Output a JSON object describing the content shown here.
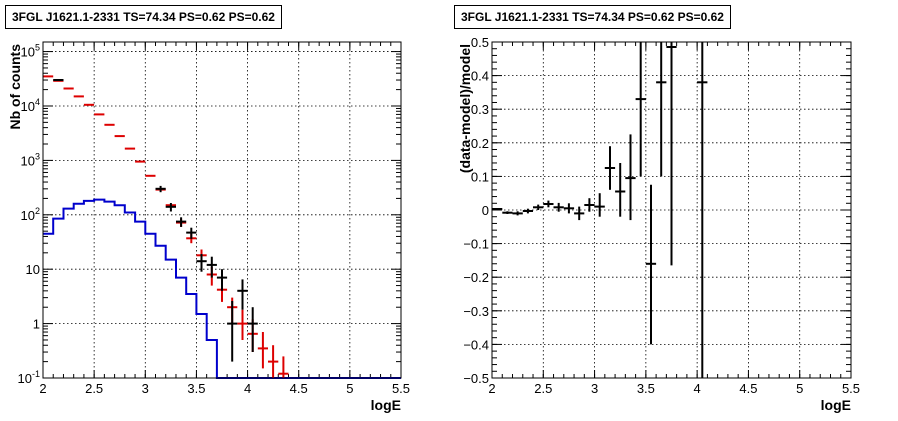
{
  "chart_data": [
    {
      "type": "histogram",
      "title": "3FGL J1621.1-2331 TS=74.34 PS=0.62 PS=0.62",
      "xlabel": "logE",
      "ylabel": "Nb of counts",
      "xlim": [
        2,
        5.5
      ],
      "ylim": [
        0.1,
        150000
      ],
      "yscale": "log",
      "grid": true,
      "x_ticks": [
        "2",
        "2.5",
        "3",
        "3.5",
        "4",
        "4.5",
        "5",
        "5.5"
      ],
      "y_ticks": [
        {
          "value": 0.1,
          "label": "10",
          "exp": "-1"
        },
        {
          "value": 1,
          "label": "1",
          "exp": ""
        },
        {
          "value": 10,
          "label": "10",
          "exp": ""
        },
        {
          "value": 100,
          "label": "10",
          "exp": "2"
        },
        {
          "value": 1000,
          "label": "10",
          "exp": "3"
        },
        {
          "value": 10000,
          "label": "10",
          "exp": "4"
        },
        {
          "value": 100000,
          "label": "10",
          "exp": "5"
        }
      ],
      "series": [
        {
          "color": "#0000cc",
          "kind": "step",
          "bin_edges": [
            2.0,
            2.1,
            2.2,
            2.3,
            2.4,
            2.5,
            2.6,
            2.7,
            2.8,
            2.9,
            3.0,
            3.1,
            3.2,
            3.3,
            3.4,
            3.5,
            3.6,
            3.7,
            3.8,
            3.9,
            4.0,
            4.1,
            4.2,
            4.3,
            4.4,
            4.5,
            4.6,
            4.7,
            4.8,
            4.9,
            5.0,
            5.1,
            5.2,
            5.3,
            5.4,
            5.5
          ],
          "values": [
            45,
            85,
            130,
            160,
            180,
            190,
            175,
            150,
            110,
            75,
            45,
            27,
            15,
            7,
            3.5,
            1.5,
            0.5,
            0.1,
            0.1,
            0.1,
            0.1,
            0.1,
            0.1,
            0.1,
            0.1,
            0.1,
            0.1,
            0.1,
            0.1,
            0.1,
            0.1,
            0.1,
            0.1,
            0.1,
            0.1
          ]
        },
        {
          "color": "#dd0000",
          "kind": "errorbar",
          "x": [
            2.05,
            2.15,
            2.25,
            2.35,
            2.45,
            2.55,
            2.65,
            2.75,
            2.85,
            2.95,
            3.05,
            3.15,
            3.25,
            3.35,
            3.45,
            3.55,
            3.65,
            3.75,
            3.85,
            3.95,
            4.05,
            4.15,
            4.25,
            4.35
          ],
          "y": [
            35000,
            29000,
            21000,
            15000,
            10500,
            7000,
            4500,
            2800,
            1650,
            950,
            520,
            290,
            150,
            72,
            37,
            18,
            8,
            4.2,
            2,
            1,
            0.65,
            0.35,
            0.2,
            0.12
          ],
          "y_low": [
            35000,
            29000,
            21000,
            15000,
            10500,
            7000,
            4500,
            2800,
            1650,
            950,
            520,
            290,
            150,
            60,
            30,
            13,
            5,
            2.5,
            1,
            0.5,
            0.3,
            0.15,
            0.1,
            0.1
          ],
          "y_high": [
            35000,
            29000,
            21000,
            15000,
            10500,
            7000,
            4500,
            2800,
            1650,
            950,
            520,
            290,
            150,
            85,
            45,
            23,
            11,
            6,
            3,
            1.8,
            1.2,
            0.7,
            0.4,
            0.25
          ]
        },
        {
          "color": "#000000",
          "kind": "errorbar",
          "x": [
            2.15,
            3.15,
            3.25,
            3.35,
            3.45,
            3.55,
            3.65,
            3.75,
            3.85,
            3.95,
            4.05
          ],
          "y": [
            30000,
            300,
            140,
            75,
            47,
            14,
            12,
            7,
            1,
            4,
            1
          ],
          "y_low": [
            29500,
            260,
            115,
            60,
            36,
            9,
            7,
            4,
            0.2,
            1.8,
            0.3
          ],
          "y_high": [
            30500,
            340,
            165,
            90,
            58,
            19,
            17,
            10,
            2.6,
            6.5,
            2
          ]
        }
      ]
    },
    {
      "type": "errorbar",
      "title": "3FGL J1621.1-2331 TS=74.34 PS=0.62 PS=0.62",
      "xlabel": "logE",
      "ylabel": "(data-model)/model",
      "xlim": [
        2,
        5.5
      ],
      "ylim": [
        -0.5,
        0.5
      ],
      "grid": true,
      "x_ticks": [
        "2",
        "2.5",
        "3",
        "3.5",
        "4",
        "4.5",
        "5",
        "5.5"
      ],
      "y_ticks": [
        "−0.5",
        "−0.4",
        "−0.3",
        "−0.2",
        "−0.1",
        "0",
        "0.1",
        "0.2",
        "0.3",
        "0.4",
        "0.5"
      ],
      "series": [
        {
          "color": "#000000",
          "x": [
            2.05,
            2.15,
            2.25,
            2.35,
            2.45,
            2.55,
            2.65,
            2.75,
            2.85,
            2.95,
            3.05,
            3.15,
            3.25,
            3.35,
            3.45,
            3.55,
            3.65,
            3.75,
            4.05
          ],
          "y": [
            0.003,
            -0.008,
            -0.01,
            -0.003,
            0.008,
            0.018,
            0.008,
            0.005,
            -0.01,
            0.015,
            0.01,
            0.125,
            0.055,
            0.095,
            0.33,
            -0.16,
            0.38,
            0.485,
            0.38
          ],
          "y_low": [
            0,
            -0.012,
            -0.016,
            -0.01,
            0,
            0.008,
            -0.005,
            -0.01,
            -0.03,
            -0.005,
            -0.02,
            0.06,
            -0.02,
            -0.03,
            0.1,
            -0.4,
            0.1,
            -0.165,
            -0.5
          ],
          "y_high": [
            0.006,
            -0.004,
            -0.004,
            0.004,
            0.016,
            0.028,
            0.021,
            0.02,
            0.01,
            0.035,
            0.05,
            0.19,
            0.14,
            0.225,
            0.5,
            0.075,
            0.5,
            0.5,
            0.5
          ]
        }
      ]
    }
  ]
}
